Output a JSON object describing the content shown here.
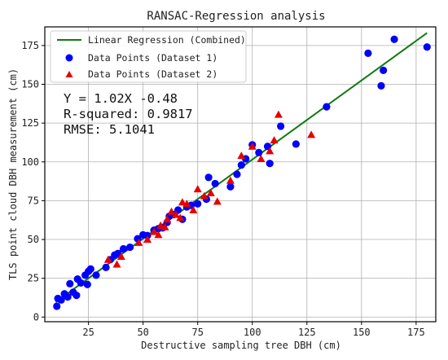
{
  "chart_data": {
    "type": "scatter",
    "title": "RANSAC-Regression analysis",
    "xlabel": "Destructive sampling tree DBH (cm)",
    "ylabel": "TLS point cloud DBH measurement (cm)",
    "xlim": [
      5,
      184
    ],
    "ylim": [
      -3,
      187
    ],
    "x_ticks": [
      25,
      50,
      75,
      100,
      125,
      150,
      175
    ],
    "y_ticks": [
      0,
      25,
      50,
      75,
      100,
      125,
      150,
      175
    ],
    "grid": true,
    "legend_position": "top-left",
    "stats": {
      "equation": "Y = 1.02X -0.48",
      "r_squared": "R-squared: 0.9817",
      "rmse": "RMSE: 5.1041"
    },
    "regression": {
      "name": "Linear Regression (Combined)",
      "color": "#107a10",
      "slope": 1.02,
      "intercept": -0.48,
      "x_range": [
        10,
        180
      ]
    },
    "series": [
      {
        "name": "Data Points (Dataset 1)",
        "marker": "circle",
        "color": "#0000ff",
        "points": [
          [
            10.5,
            7
          ],
          [
            11,
            12
          ],
          [
            12.5,
            11
          ],
          [
            14,
            15
          ],
          [
            15.5,
            13
          ],
          [
            16.5,
            21.5
          ],
          [
            18,
            16
          ],
          [
            19.5,
            14
          ],
          [
            20,
            24.5
          ],
          [
            21.5,
            22
          ],
          [
            23.5,
            27
          ],
          [
            24.5,
            21
          ],
          [
            25,
            29.5
          ],
          [
            26,
            31
          ],
          [
            28.5,
            27
          ],
          [
            33,
            32
          ],
          [
            35,
            37
          ],
          [
            37,
            40
          ],
          [
            38.5,
            41
          ],
          [
            41,
            44
          ],
          [
            44,
            45
          ],
          [
            47.5,
            50.5
          ],
          [
            50,
            53
          ],
          [
            52,
            52.5
          ],
          [
            55,
            56
          ],
          [
            57,
            57
          ],
          [
            59,
            57.5
          ],
          [
            61,
            61
          ],
          [
            62,
            65
          ],
          [
            64,
            66
          ],
          [
            66,
            69
          ],
          [
            68,
            63
          ],
          [
            70,
            71
          ],
          [
            72,
            72
          ],
          [
            75,
            73
          ],
          [
            79,
            76
          ],
          [
            80,
            90
          ],
          [
            83,
            86
          ],
          [
            90,
            84
          ],
          [
            93,
            92
          ],
          [
            95,
            98
          ],
          [
            97,
            102
          ],
          [
            100,
            111
          ],
          [
            103,
            106
          ],
          [
            107,
            110
          ],
          [
            108,
            99
          ],
          [
            113,
            123
          ],
          [
            120,
            111.5
          ],
          [
            134,
            135.5
          ],
          [
            153,
            170
          ],
          [
            159,
            149
          ],
          [
            160,
            159
          ],
          [
            165,
            179
          ],
          [
            180,
            174
          ]
        ]
      },
      {
        "name": "Data Points (Dataset 2)",
        "marker": "triangle",
        "color": "#e60000",
        "points": [
          [
            34,
            37
          ],
          [
            38,
            34
          ],
          [
            40,
            39
          ],
          [
            48,
            48
          ],
          [
            52,
            50
          ],
          [
            55,
            55
          ],
          [
            57,
            53
          ],
          [
            58,
            59
          ],
          [
            60,
            58
          ],
          [
            61,
            63
          ],
          [
            63,
            68
          ],
          [
            65,
            66
          ],
          [
            67,
            64
          ],
          [
            68,
            74
          ],
          [
            70,
            73
          ],
          [
            73,
            69
          ],
          [
            75,
            82.5
          ],
          [
            78,
            78
          ],
          [
            81,
            80
          ],
          [
            84,
            74.5
          ],
          [
            90,
            88
          ],
          [
            95,
            104
          ],
          [
            100,
            110
          ],
          [
            104,
            102
          ],
          [
            108,
            107
          ],
          [
            110,
            114
          ],
          [
            112,
            130.5
          ],
          [
            127,
            117.5
          ]
        ]
      }
    ]
  }
}
